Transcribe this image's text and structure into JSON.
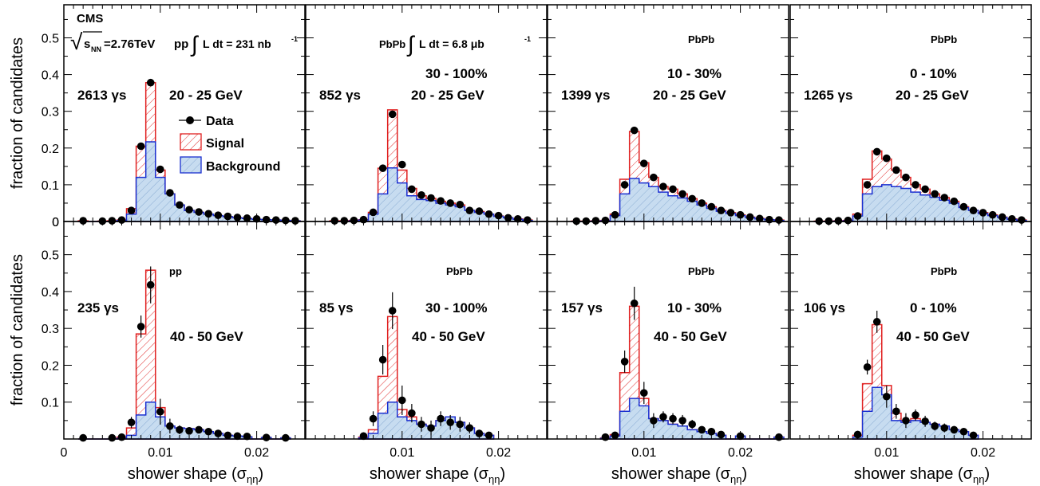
{
  "figure": {
    "ylabel": "fraction of candidates",
    "xlabel_main": "shower shape (σ",
    "xlabel_sub": "ηη",
    "xlabel_close": ")",
    "legend": {
      "data": "Data",
      "signal": "Signal",
      "background": "Background"
    },
    "cms": {
      "label": "CMS",
      "sqrt": "√",
      "s": "s",
      "nn": "NN",
      "energy": "=2.76TeV",
      "pp_lumi_prefix": "pp",
      "lumi_pp": "L dt = 231 nb",
      "lumi_pbpb_prefix": "PbPb",
      "lumi_pbpb": "L dt = 6.8 μb",
      "sup": "-1",
      "integral": "∫"
    }
  },
  "chart_data": [
    {
      "type": "bar",
      "row": 0,
      "col": 0,
      "count": "2613 γs",
      "centrality": "",
      "ptbin": "20 - 25 GeV",
      "collision": "",
      "x": [
        0.002,
        0.004,
        0.005,
        0.006,
        0.007,
        0.008,
        0.009,
        0.01,
        0.011,
        0.012,
        0.013,
        0.014,
        0.015,
        0.016,
        0.017,
        0.018,
        0.019,
        0.02,
        0.021,
        0.022,
        0.023,
        0.024
      ],
      "data": [
        0.002,
        0.001,
        0.002,
        0.004,
        0.03,
        0.205,
        0.378,
        0.142,
        0.078,
        0.045,
        0.032,
        0.026,
        0.021,
        0.017,
        0.014,
        0.011,
        0.009,
        0.007,
        0.005,
        0.004,
        0.003,
        0.002
      ],
      "signal": [
        0.002,
        0.001,
        0.002,
        0.004,
        0.035,
        0.205,
        0.378,
        0.14,
        0.075,
        0.045,
        0.03,
        0.025,
        0.02,
        0.016,
        0.013,
        0.01,
        0.008,
        0.006,
        0.005,
        0.004,
        0.003,
        0.002
      ],
      "background": [
        0,
        0,
        0,
        0.003,
        0.02,
        0.12,
        0.217,
        0.12,
        0.075,
        0.045,
        0.03,
        0.025,
        0.02,
        0.016,
        0.013,
        0.01,
        0.008,
        0.006,
        0.005,
        0.004,
        0.003,
        0.002
      ],
      "ylim": [
        0,
        0.59
      ],
      "xlim": [
        0,
        0.025
      ]
    },
    {
      "type": "bar",
      "row": 0,
      "col": 1,
      "count": "852 γs",
      "centrality": "30 - 100%",
      "ptbin": "20 - 25 GeV",
      "collision": "",
      "x": [
        0.003,
        0.004,
        0.005,
        0.006,
        0.007,
        0.008,
        0.009,
        0.01,
        0.011,
        0.012,
        0.013,
        0.014,
        0.015,
        0.016,
        0.017,
        0.018,
        0.019,
        0.02,
        0.021,
        0.022,
        0.023
      ],
      "data": [
        0.002,
        0.002,
        0.003,
        0.005,
        0.025,
        0.145,
        0.292,
        0.155,
        0.088,
        0.072,
        0.064,
        0.056,
        0.05,
        0.046,
        0.03,
        0.028,
        0.02,
        0.016,
        0.01,
        0.007,
        0.004
      ],
      "signal": [
        0.002,
        0.002,
        0.003,
        0.005,
        0.025,
        0.145,
        0.304,
        0.14,
        0.09,
        0.07,
        0.063,
        0.055,
        0.05,
        0.045,
        0.03,
        0.027,
        0.02,
        0.015,
        0.01,
        0.007,
        0.004
      ],
      "background": [
        0,
        0,
        0.002,
        0.004,
        0.02,
        0.075,
        0.146,
        0.105,
        0.07,
        0.06,
        0.057,
        0.05,
        0.045,
        0.04,
        0.03,
        0.025,
        0.02,
        0.014,
        0.01,
        0.006,
        0.003
      ],
      "ylim": [
        0,
        0.59
      ],
      "xlim": [
        0,
        0.025
      ]
    },
    {
      "type": "bar",
      "row": 0,
      "col": 2,
      "count": "1399 γs",
      "centrality": "10 - 30%",
      "ptbin": "20 - 25 GeV",
      "collision": "PbPb",
      "x": [
        0.003,
        0.004,
        0.005,
        0.006,
        0.007,
        0.008,
        0.009,
        0.01,
        0.011,
        0.012,
        0.013,
        0.014,
        0.015,
        0.016,
        0.017,
        0.018,
        0.019,
        0.02,
        0.021,
        0.022,
        0.023,
        0.024
      ],
      "data": [
        0.001,
        0.001,
        0.002,
        0.003,
        0.018,
        0.1,
        0.248,
        0.158,
        0.12,
        0.095,
        0.088,
        0.075,
        0.062,
        0.05,
        0.04,
        0.03,
        0.024,
        0.018,
        0.012,
        0.008,
        0.005,
        0.004
      ],
      "signal": [
        0.001,
        0.001,
        0.002,
        0.003,
        0.02,
        0.115,
        0.245,
        0.16,
        0.12,
        0.095,
        0.088,
        0.075,
        0.062,
        0.05,
        0.04,
        0.03,
        0.024,
        0.018,
        0.012,
        0.008,
        0.005,
        0.004
      ],
      "background": [
        0,
        0,
        0.001,
        0.002,
        0.016,
        0.075,
        0.117,
        0.105,
        0.095,
        0.08,
        0.07,
        0.064,
        0.055,
        0.045,
        0.036,
        0.028,
        0.022,
        0.016,
        0.011,
        0.007,
        0.005,
        0.003
      ],
      "ylim": [
        0,
        0.59
      ],
      "xlim": [
        0,
        0.025
      ]
    },
    {
      "type": "bar",
      "row": 0,
      "col": 3,
      "count": "1265 γs",
      "centrality": "0 - 10%",
      "ptbin": "20 - 25 GeV",
      "collision": "PbPb",
      "x": [
        0.003,
        0.004,
        0.005,
        0.006,
        0.007,
        0.008,
        0.009,
        0.01,
        0.011,
        0.012,
        0.013,
        0.014,
        0.015,
        0.016,
        0.017,
        0.018,
        0.019,
        0.02,
        0.021,
        0.022,
        0.023,
        0.024
      ],
      "data": [
        0.001,
        0.001,
        0.002,
        0.003,
        0.015,
        0.1,
        0.19,
        0.172,
        0.14,
        0.12,
        0.1,
        0.088,
        0.075,
        0.065,
        0.055,
        0.04,
        0.03,
        0.024,
        0.018,
        0.012,
        0.007,
        0.004
      ],
      "signal": [
        0.001,
        0.001,
        0.002,
        0.003,
        0.02,
        0.115,
        0.192,
        0.17,
        0.14,
        0.12,
        0.1,
        0.088,
        0.075,
        0.065,
        0.055,
        0.04,
        0.03,
        0.024,
        0.018,
        0.012,
        0.007,
        0.004
      ],
      "background": [
        0,
        0,
        0.001,
        0.002,
        0.015,
        0.075,
        0.095,
        0.1,
        0.095,
        0.09,
        0.08,
        0.072,
        0.066,
        0.058,
        0.05,
        0.038,
        0.03,
        0.022,
        0.016,
        0.011,
        0.006,
        0.003
      ],
      "ylim": [
        0,
        0.59
      ],
      "xlim": [
        0,
        0.025
      ]
    },
    {
      "type": "bar",
      "row": 1,
      "col": 0,
      "count": "235 γs",
      "centrality": "",
      "ptbin": "40 - 50 GeV",
      "collision": "pp",
      "x": [
        0.002,
        0.005,
        0.006,
        0.007,
        0.008,
        0.009,
        0.01,
        0.011,
        0.012,
        0.013,
        0.014,
        0.015,
        0.016,
        0.017,
        0.018,
        0.019,
        0.021,
        0.023
      ],
      "xerr_y": [
        0.006,
        0.008,
        0.008,
        0.015,
        0.03,
        0.05,
        0.035,
        0.02,
        0.012,
        0.01,
        0.009,
        0.008,
        0.007,
        0.006,
        0.005,
        0.004,
        0.003,
        0.003
      ],
      "data": [
        0.003,
        0.003,
        0.005,
        0.045,
        0.305,
        0.418,
        0.074,
        0.035,
        0.025,
        0.022,
        0.025,
        0.02,
        0.015,
        0.01,
        0.008,
        0.007,
        0.004,
        0.003
      ],
      "signal": [
        0,
        0,
        0.005,
        0.03,
        0.285,
        0.458,
        0.085,
        0.035,
        0.03,
        0.028,
        0.025,
        0.02,
        0.015,
        0.01,
        0.008,
        0.006,
        0.004,
        0.003
      ],
      "background": [
        0,
        0,
        0.002,
        0.01,
        0.065,
        0.1,
        0.06,
        0.035,
        0.03,
        0.028,
        0.025,
        0.02,
        0.015,
        0.01,
        0.008,
        0.006,
        0.004,
        0.003
      ],
      "ylim": [
        0,
        0.59
      ],
      "xlim": [
        0,
        0.025
      ]
    },
    {
      "type": "bar",
      "row": 1,
      "col": 1,
      "count": "85 γs",
      "centrality": "30 - 100%",
      "ptbin": "40 - 50 GeV",
      "collision": "PbPb",
      "x": [
        0.006,
        0.007,
        0.008,
        0.009,
        0.01,
        0.011,
        0.012,
        0.013,
        0.014,
        0.015,
        0.016,
        0.017,
        0.018,
        0.019
      ],
      "xerr_y": [
        0.01,
        0.02,
        0.04,
        0.05,
        0.04,
        0.025,
        0.02,
        0.02,
        0.02,
        0.02,
        0.02,
        0.015,
        0.01,
        0.008
      ],
      "data": [
        0.008,
        0.055,
        0.215,
        0.348,
        0.105,
        0.07,
        0.04,
        0.03,
        0.055,
        0.045,
        0.04,
        0.03,
        0.015,
        0.01
      ],
      "signal": [
        0.005,
        0.025,
        0.17,
        0.332,
        0.08,
        0.06,
        0.04,
        0.035,
        0.05,
        0.06,
        0.045,
        0.03,
        0.015,
        0.01
      ],
      "background": [
        0.003,
        0.015,
        0.07,
        0.1,
        0.06,
        0.05,
        0.04,
        0.035,
        0.05,
        0.06,
        0.045,
        0.03,
        0.015,
        0.01
      ],
      "ylim": [
        0,
        0.59
      ],
      "xlim": [
        0,
        0.025
      ]
    },
    {
      "type": "bar",
      "row": 1,
      "col": 2,
      "count": "157 γs",
      "centrality": "10 - 30%",
      "ptbin": "40 - 50 GeV",
      "collision": "PbPb",
      "x": [
        0.006,
        0.007,
        0.008,
        0.009,
        0.01,
        0.011,
        0.012,
        0.013,
        0.014,
        0.015,
        0.016,
        0.017,
        0.018,
        0.02,
        0.024
      ],
      "xerr_y": [
        0.006,
        0.01,
        0.03,
        0.045,
        0.03,
        0.02,
        0.015,
        0.015,
        0.015,
        0.012,
        0.01,
        0.01,
        0.008,
        0.006,
        0.004
      ],
      "data": [
        0.005,
        0.01,
        0.21,
        0.368,
        0.125,
        0.05,
        0.06,
        0.055,
        0.05,
        0.04,
        0.025,
        0.02,
        0.012,
        0.008,
        0.005
      ],
      "signal": [
        0.003,
        0.012,
        0.18,
        0.36,
        0.11,
        0.055,
        0.05,
        0.04,
        0.035,
        0.025,
        0.02,
        0.015,
        0.01,
        0.008,
        0.005
      ],
      "background": [
        0.002,
        0.008,
        0.075,
        0.11,
        0.09,
        0.055,
        0.05,
        0.04,
        0.035,
        0.025,
        0.02,
        0.015,
        0.01,
        0.008,
        0.005
      ],
      "ylim": [
        0,
        0.59
      ],
      "xlim": [
        0,
        0.025
      ]
    },
    {
      "type": "bar",
      "row": 1,
      "col": 3,
      "count": "106 γs",
      "centrality": "0 - 10%",
      "ptbin": "40 - 50 GeV",
      "collision": "PbPb",
      "x": [
        0.007,
        0.008,
        0.009,
        0.01,
        0.011,
        0.012,
        0.013,
        0.014,
        0.015,
        0.016,
        0.017,
        0.018,
        0.019
      ],
      "xerr_y": [
        0.01,
        0.02,
        0.03,
        0.03,
        0.02,
        0.02,
        0.015,
        0.015,
        0.012,
        0.012,
        0.01,
        0.008,
        0.006
      ],
      "data": [
        0.012,
        0.195,
        0.318,
        0.115,
        0.075,
        0.05,
        0.065,
        0.048,
        0.035,
        0.03,
        0.025,
        0.02,
        0.01
      ],
      "signal": [
        0.01,
        0.15,
        0.31,
        0.145,
        0.07,
        0.05,
        0.055,
        0.045,
        0.04,
        0.035,
        0.025,
        0.02,
        0.01
      ],
      "background": [
        0.005,
        0.075,
        0.14,
        0.12,
        0.05,
        0.045,
        0.05,
        0.045,
        0.04,
        0.035,
        0.025,
        0.02,
        0.01
      ],
      "ylim": [
        0,
        0.59
      ],
      "xlim": [
        0,
        0.025
      ]
    }
  ]
}
